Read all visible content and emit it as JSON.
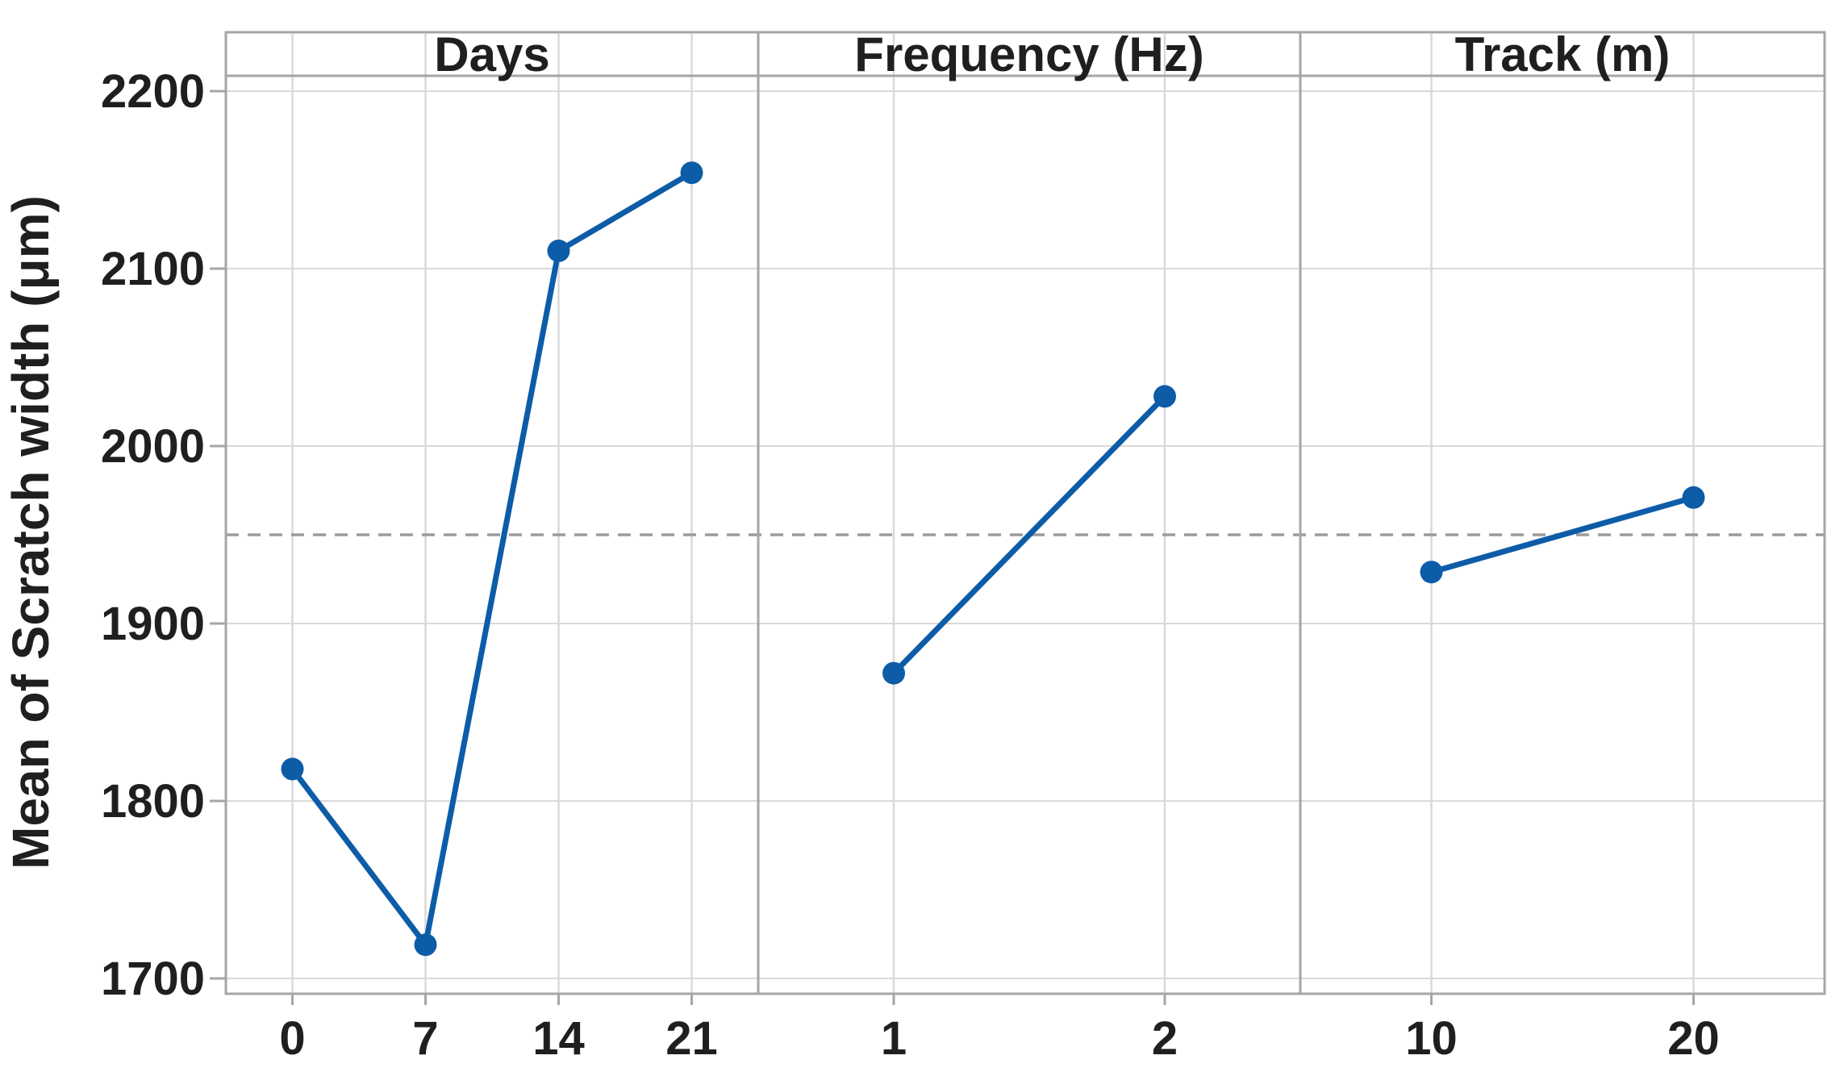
{
  "chart_data": {
    "type": "line",
    "subtype": "main-effects-plot",
    "ylabel": "Mean of Scratch width (μm)",
    "y_ticks": [
      1700,
      1800,
      1900,
      2000,
      2100,
      2200
    ],
    "ylim": [
      1691,
      2209
    ],
    "grid": true,
    "legend": "none",
    "reference_line": {
      "value": 1950,
      "style": "dashed"
    },
    "panels": [
      {
        "title": "Days",
        "categories": [
          "0",
          "7",
          "14",
          "21"
        ],
        "values": [
          1818,
          1719,
          2110,
          2154
        ]
      },
      {
        "title": "Frequency (Hz)",
        "categories": [
          "1",
          "2"
        ],
        "values": [
          1872,
          2028
        ]
      },
      {
        "title": "Track (m)",
        "categories": [
          "10",
          "20"
        ],
        "values": [
          1929,
          1971
        ]
      }
    ],
    "marker": "filled-circle"
  },
  "colors": {
    "series": "#0d5ca7",
    "grid": "#d9d9d9",
    "border": "#a6a6a6",
    "reference": "#9b9b9b",
    "text": "#1f1f1f",
    "background": "#ffffff"
  }
}
